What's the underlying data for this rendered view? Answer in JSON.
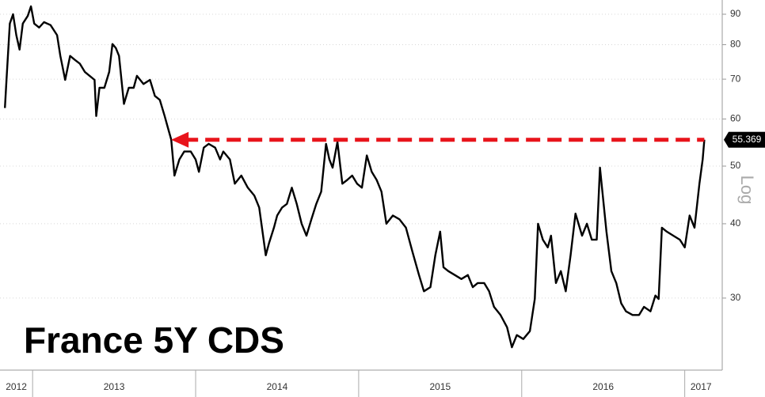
{
  "chart_data": {
    "type": "line",
    "title": "France 5Y CDS",
    "y_axis_label": "Log",
    "log": true,
    "grid": true,
    "color": "#000000",
    "x": [
      2012.83,
      2012.84,
      2012.86,
      2012.88,
      2012.9,
      2012.92,
      2012.94,
      2012.97,
      2012.99,
      2013.01,
      2013.04,
      2013.07,
      2013.11,
      2013.15,
      2013.17,
      2013.2,
      2013.23,
      2013.26,
      2013.29,
      2013.32,
      2013.35,
      2013.38,
      2013.39,
      2013.41,
      2013.44,
      2013.47,
      2013.49,
      2013.51,
      2013.53,
      2013.56,
      2013.59,
      2013.62,
      2013.64,
      2013.68,
      2013.72,
      2013.75,
      2013.78,
      2013.81,
      2013.83,
      2013.85,
      2013.87,
      2013.9,
      2013.93,
      2013.97,
      2014.0,
      2014.02,
      2014.05,
      2014.08,
      2014.12,
      2014.15,
      2014.17,
      2014.21,
      2014.24,
      2014.28,
      2014.32,
      2014.36,
      2014.39,
      2014.43,
      2014.45,
      2014.48,
      2014.5,
      2014.53,
      2014.56,
      2014.59,
      2014.62,
      2014.65,
      2014.68,
      2014.71,
      2014.74,
      2014.77,
      2014.8,
      2014.82,
      2014.84,
      2014.87,
      2014.9,
      2014.93,
      2014.96,
      2014.99,
      2015.02,
      2015.05,
      2015.08,
      2015.11,
      2015.14,
      2015.17,
      2015.21,
      2015.25,
      2015.29,
      2015.33,
      2015.37,
      2015.4,
      2015.44,
      2015.47,
      2015.5,
      2015.52,
      2015.55,
      2015.59,
      2015.63,
      2015.67,
      2015.7,
      2015.73,
      2015.77,
      2015.8,
      2015.83,
      2015.87,
      2015.91,
      2015.94,
      2015.97,
      2016.01,
      2016.05,
      2016.08,
      2016.1,
      2016.13,
      2016.16,
      2016.18,
      2016.21,
      2016.24,
      2016.27,
      2016.3,
      2016.33,
      2016.37,
      2016.4,
      2016.43,
      2016.46,
      2016.48,
      2016.5,
      2016.52,
      2016.55,
      2016.58,
      2016.61,
      2016.64,
      2016.68,
      2016.72,
      2016.75,
      2016.79,
      2016.82,
      2016.84,
      2016.86,
      2016.89,
      2016.93,
      2016.97,
      2017.0,
      2017.03,
      2017.06,
      2017.09,
      2017.11,
      2017.12
    ],
    "values": [
      62.6,
      69.8,
      86.8,
      90,
      83.0,
      78.5,
      86.8,
      89.4,
      92.8,
      86.8,
      85.5,
      87.3,
      86.3,
      83.0,
      76.6,
      69.8,
      76.6,
      75.4,
      74.3,
      72.0,
      70.9,
      69.8,
      60.7,
      67.7,
      67.7,
      72.0,
      80.2,
      79.0,
      76.6,
      63.6,
      67.7,
      67.7,
      70.9,
      68.7,
      69.8,
      65.6,
      64.6,
      60.7,
      58.0,
      55.4,
      48.2,
      51.3,
      52.9,
      52.9,
      51.3,
      48.9,
      53.7,
      54.5,
      53.7,
      51.3,
      52.9,
      51.3,
      46.7,
      48.2,
      46.0,
      44.6,
      42.6,
      35.4,
      37.1,
      39.4,
      41.3,
      42.6,
      43.2,
      46.0,
      43.2,
      40.0,
      38.2,
      40.7,
      43.2,
      45.3,
      54.5,
      51.3,
      49.7,
      54.9,
      46.7,
      47.4,
      48.2,
      46.7,
      46.0,
      52.1,
      48.9,
      47.4,
      45.3,
      40.0,
      41.3,
      40.7,
      39.4,
      35.9,
      32.8,
      30.8,
      31.3,
      35.4,
      38.8,
      33.8,
      33.3,
      32.8,
      32.3,
      32.8,
      31.3,
      31.8,
      31.8,
      30.8,
      29.0,
      28.1,
      26.8,
      24.8,
      26.0,
      25.6,
      26.4,
      29.9,
      40.0,
      37.6,
      36.5,
      38.2,
      31.8,
      33.3,
      30.8,
      35.4,
      41.6,
      38.2,
      40.0,
      37.6,
      37.6,
      49.7,
      43.9,
      38.8,
      33.3,
      31.8,
      29.4,
      28.5,
      28.1,
      28.1,
      29.0,
      28.5,
      30.3,
      29.9,
      39.4,
      38.8,
      38.2,
      37.6,
      36.5,
      41.3,
      39.4,
      46.7,
      51.3,
      55.369
    ],
    "xlim": [
      2012.8,
      2017.23
    ],
    "ylim": [
      22.7,
      95.1
    ],
    "yticks": [
      30,
      40,
      50,
      60,
      70,
      80,
      90
    ],
    "xticks": [
      {
        "value": 2012.9,
        "label": "2012"
      },
      {
        "value": 2013.5,
        "label": "2013"
      },
      {
        "value": 2014.5,
        "label": "2014"
      },
      {
        "value": 2015.5,
        "label": "2015"
      },
      {
        "value": 2016.5,
        "label": "2016"
      },
      {
        "value": 2017.1,
        "label": "2017"
      }
    ],
    "reference_arrow": {
      "x_start": 2013.85,
      "color": "#e8141b"
    }
  }
}
